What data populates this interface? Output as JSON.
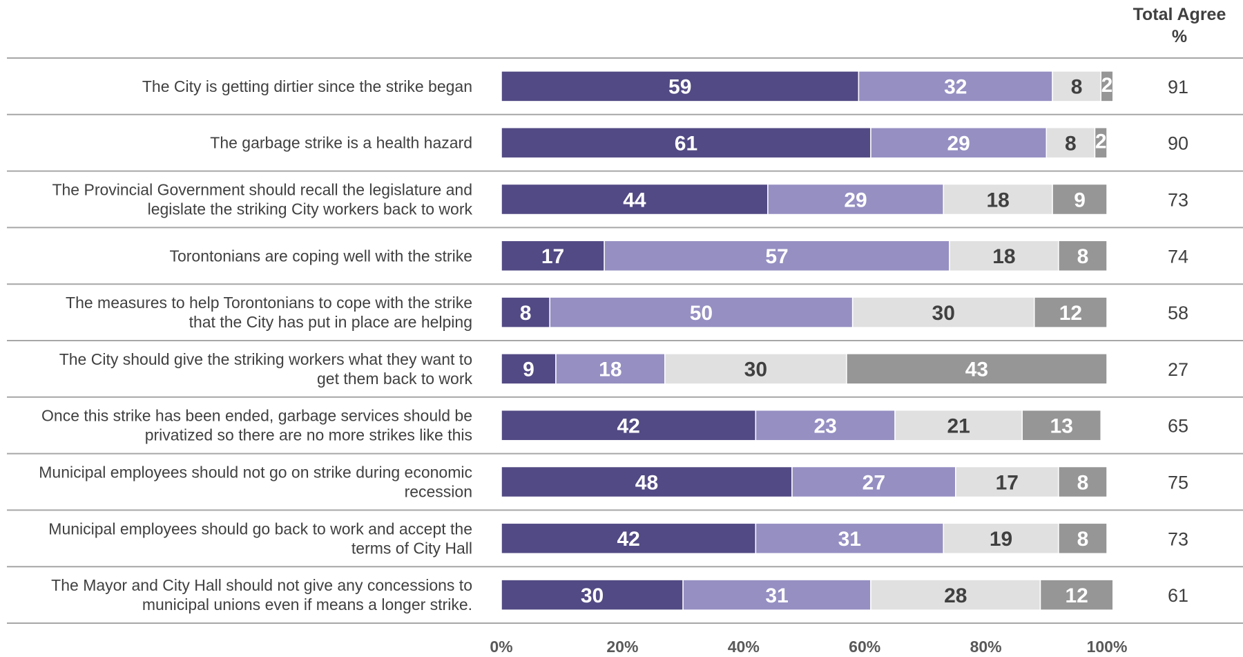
{
  "chart_data": {
    "type": "bar",
    "orientation": "horizontal",
    "stacked": true,
    "title": "",
    "xlabel": "",
    "ylabel": "",
    "xlim": [
      0,
      100
    ],
    "ticks": [
      "0%",
      "20%",
      "40%",
      "60%",
      "80%",
      "100%"
    ],
    "tick_values": [
      0,
      20,
      40,
      60,
      80,
      100
    ],
    "legend": "none",
    "grid": false,
    "header_line1": "Total Agree",
    "header_line2": "%",
    "categories": [
      [
        "The City is getting dirtier since the strike began"
      ],
      [
        "The garbage strike is a health hazard"
      ],
      [
        "The Provincial Government should recall the legislature and",
        "legislate the striking City workers back to work"
      ],
      [
        "Torontonians are coping well with the strike"
      ],
      [
        "The measures to help Torontonians to cope with the strike",
        "that the City has put in place are helping"
      ],
      [
        "The City should give the striking workers  what they want to",
        "get them back to work"
      ],
      [
        "Once this strike has been ended, garbage services should be",
        "privatized so there are no more strikes like this"
      ],
      [
        "Municipal employees should not go on strike during economic",
        "recession"
      ],
      [
        "Municipal employees should go back to work and accept the",
        "terms of City Hall"
      ],
      [
        "The Mayor and City Hall should not give any concessions to",
        "municipal unions even if means a longer strike."
      ]
    ],
    "series": [
      {
        "color": "#524a84",
        "label_color": "#ffffff",
        "values": [
          59,
          61,
          44,
          17,
          8,
          9,
          42,
          48,
          42,
          30
        ]
      },
      {
        "color": "#958fc2",
        "label_color": "#ffffff",
        "values": [
          32,
          29,
          29,
          57,
          50,
          18,
          23,
          27,
          31,
          31
        ]
      },
      {
        "color": "#e0e0e0",
        "label_color": "#404040",
        "values": [
          8,
          8,
          18,
          18,
          30,
          30,
          21,
          17,
          19,
          28
        ]
      },
      {
        "color": "#969696",
        "label_color": "#ffffff",
        "values": [
          2,
          2,
          9,
          8,
          12,
          43,
          13,
          8,
          8,
          12
        ]
      }
    ],
    "total_agree": [
      91,
      90,
      73,
      74,
      58,
      27,
      65,
      75,
      73,
      61
    ]
  }
}
